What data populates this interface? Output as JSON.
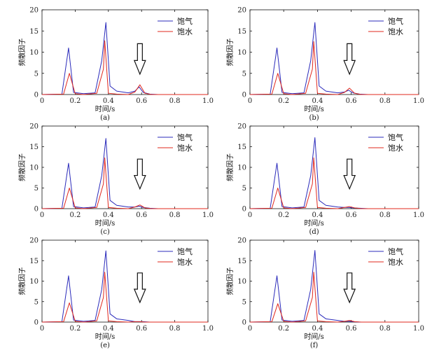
{
  "colors": {
    "saturated_gas": "#2b2bbb",
    "saturated_water": "#e0281e",
    "axis": "#111111",
    "arrow": "#111111"
  },
  "chart_data": [
    {
      "type": "line",
      "panel_label": "(a)",
      "xlabel": "时间/s",
      "ylabel": "频散因子",
      "xlim": [
        0,
        1.0
      ],
      "ylim": [
        0,
        20
      ],
      "xticks": [
        "0",
        "0.2",
        "0.4",
        "0.6",
        "0.8",
        "1.0"
      ],
      "yticks": [
        "0",
        "5",
        "10",
        "15",
        "20"
      ],
      "legend_position": "top-right",
      "peaks": {
        "saturated_gas": [
          11,
          17,
          1.8
        ],
        "saturated_water": [
          5,
          12.7,
          2.3
        ]
      },
      "series": [
        {
          "name": "饱气",
          "x": [
            0,
            0.12,
            0.16,
            0.19,
            0.25,
            0.32,
            0.36,
            0.385,
            0.41,
            0.45,
            0.52,
            0.56,
            0.585,
            0.61,
            0.65,
            0.7,
            0.8,
            1.0
          ],
          "y": [
            0,
            0.1,
            11,
            0.5,
            0.2,
            0.4,
            8,
            17,
            2,
            0.8,
            0.4,
            0.8,
            1.8,
            0.5,
            0.1,
            0,
            0,
            0
          ]
        },
        {
          "name": "饱水",
          "x": [
            0,
            0.13,
            0.165,
            0.2,
            0.25,
            0.33,
            0.37,
            0.378,
            0.4,
            0.45,
            0.52,
            0.56,
            0.59,
            0.62,
            0.66,
            0.7,
            0.8,
            1.0
          ],
          "y": [
            0,
            0.1,
            5,
            0.2,
            0,
            0.3,
            6,
            12.7,
            0.3,
            0.1,
            0,
            0.6,
            2.3,
            0.3,
            0,
            0,
            0,
            0
          ]
        }
      ],
      "arrow_x": 0.59
    },
    {
      "type": "line",
      "panel_label": "(b)",
      "xlabel": "时间/s",
      "ylabel": "频散因子",
      "xlim": [
        0,
        1.0
      ],
      "ylim": [
        0,
        20
      ],
      "xticks": [
        "0",
        "0.2",
        "0.4",
        "0.6",
        "0.8",
        "1.0"
      ],
      "yticks": [
        "0",
        "5",
        "10",
        "15",
        "20"
      ],
      "legend_position": "top-right",
      "peaks": {
        "saturated_gas": [
          11,
          17,
          1.0
        ],
        "saturated_water": [
          5,
          12.5,
          1.5
        ]
      },
      "series": [
        {
          "name": "饱气",
          "x": [
            0,
            0.12,
            0.16,
            0.19,
            0.25,
            0.32,
            0.36,
            0.385,
            0.41,
            0.45,
            0.52,
            0.56,
            0.585,
            0.61,
            0.65,
            0.7,
            0.8,
            1.0
          ],
          "y": [
            0,
            0.1,
            11,
            0.5,
            0.2,
            0.4,
            8,
            17,
            2,
            0.8,
            0.4,
            0.6,
            1.0,
            0.4,
            0.1,
            0,
            0,
            0
          ]
        },
        {
          "name": "饱水",
          "x": [
            0,
            0.13,
            0.165,
            0.2,
            0.25,
            0.33,
            0.37,
            0.378,
            0.4,
            0.45,
            0.52,
            0.56,
            0.59,
            0.62,
            0.66,
            0.7,
            0.8,
            1.0
          ],
          "y": [
            0,
            0.1,
            5,
            0.2,
            0,
            0.3,
            6,
            12.5,
            0.3,
            0.1,
            0,
            0.5,
            1.5,
            0.3,
            0,
            0,
            0,
            0
          ]
        }
      ],
      "arrow_x": 0.59
    },
    {
      "type": "line",
      "panel_label": "(c)",
      "xlabel": "时间/s",
      "ylabel": "频散因子",
      "xlim": [
        0,
        1.0
      ],
      "ylim": [
        0,
        20
      ],
      "xticks": [
        "0",
        "0.2",
        "0.4",
        "0.6",
        "0.8",
        "1.0"
      ],
      "yticks": [
        "0",
        "5",
        "10",
        "15",
        "20"
      ],
      "legend_position": "top-right",
      "peaks": {
        "saturated_gas": [
          11,
          17,
          0.6
        ],
        "saturated_water": [
          5,
          12.3,
          0.9
        ]
      },
      "series": [
        {
          "name": "饱气",
          "x": [
            0,
            0.12,
            0.16,
            0.19,
            0.25,
            0.32,
            0.36,
            0.385,
            0.41,
            0.45,
            0.52,
            0.56,
            0.585,
            0.61,
            0.65,
            0.7,
            0.8,
            1.0
          ],
          "y": [
            0,
            0.1,
            11,
            0.5,
            0.2,
            0.4,
            8,
            17,
            2,
            0.8,
            0.4,
            0.4,
            0.6,
            0.3,
            0.1,
            0,
            0,
            0
          ]
        },
        {
          "name": "饱水",
          "x": [
            0,
            0.13,
            0.165,
            0.2,
            0.25,
            0.33,
            0.37,
            0.378,
            0.4,
            0.45,
            0.52,
            0.56,
            0.59,
            0.62,
            0.66,
            0.7,
            0.8,
            1.0
          ],
          "y": [
            0,
            0.1,
            5,
            0.2,
            0,
            0.3,
            6,
            12.3,
            0.3,
            0.1,
            0,
            0.4,
            0.9,
            0.2,
            0,
            0,
            0,
            0
          ]
        }
      ],
      "arrow_x": 0.59
    },
    {
      "type": "line",
      "panel_label": "(d)",
      "xlabel": "时间/s",
      "ylabel": "频散因子",
      "xlim": [
        0,
        1.0
      ],
      "ylim": [
        0,
        20
      ],
      "xticks": [
        "0",
        "0.2",
        "0.4",
        "0.6",
        "0.8",
        "1.0"
      ],
      "yticks": [
        "0",
        "5",
        "10",
        "15",
        "20"
      ],
      "legend_position": "top-right",
      "peaks": {
        "saturated_gas": [
          11,
          17.2,
          0.3
        ],
        "saturated_water": [
          5,
          12.3,
          0.5
        ]
      },
      "series": [
        {
          "name": "饱气",
          "x": [
            0,
            0.12,
            0.16,
            0.19,
            0.25,
            0.32,
            0.36,
            0.385,
            0.41,
            0.45,
            0.52,
            0.56,
            0.585,
            0.61,
            0.65,
            0.7,
            0.8,
            1.0
          ],
          "y": [
            0,
            0.1,
            11,
            0.5,
            0.2,
            0.4,
            8,
            17.2,
            2,
            0.8,
            0.4,
            0.3,
            0.3,
            0.2,
            0.1,
            0,
            0,
            0
          ]
        },
        {
          "name": "饱水",
          "x": [
            0,
            0.13,
            0.165,
            0.2,
            0.25,
            0.33,
            0.37,
            0.378,
            0.4,
            0.45,
            0.52,
            0.56,
            0.59,
            0.62,
            0.66,
            0.7,
            0.8,
            1.0
          ],
          "y": [
            0,
            0.1,
            5,
            0.2,
            0,
            0.3,
            6,
            12.3,
            0.3,
            0.1,
            0,
            0.3,
            0.5,
            0.2,
            0,
            0,
            0,
            0
          ]
        }
      ],
      "arrow_x": 0.59
    },
    {
      "type": "line",
      "panel_label": "(e)",
      "xlabel": "时间/s",
      "ylabel": "频散因子",
      "xlim": [
        0,
        1.0
      ],
      "ylim": [
        0,
        20
      ],
      "xticks": [
        "0",
        "0.2",
        "0.4",
        "0.6",
        "0.8",
        "1.0"
      ],
      "yticks": [
        "0",
        "5",
        "10",
        "15",
        "20"
      ],
      "legend_position": "top-right",
      "peaks": {
        "saturated_gas": [
          11.3,
          17.4,
          0.1
        ],
        "saturated_water": [
          4.7,
          12.2,
          0.1
        ]
      },
      "series": [
        {
          "name": "饱气",
          "x": [
            0,
            0.12,
            0.16,
            0.19,
            0.25,
            0.32,
            0.36,
            0.385,
            0.41,
            0.45,
            0.52,
            0.56,
            0.585,
            0.61,
            0.65,
            0.7,
            0.8,
            1.0
          ],
          "y": [
            0,
            0.1,
            11.3,
            0.5,
            0.2,
            0.4,
            8,
            17.4,
            2,
            0.8,
            0.4,
            0.1,
            0.1,
            0.1,
            0,
            0,
            0,
            0
          ]
        },
        {
          "name": "饱水",
          "x": [
            0,
            0.13,
            0.165,
            0.2,
            0.25,
            0.33,
            0.37,
            0.378,
            0.4,
            0.45,
            0.52,
            0.56,
            0.59,
            0.62,
            0.66,
            0.7,
            0.8,
            1.0
          ],
          "y": [
            0,
            0.1,
            4.7,
            0.2,
            0,
            0.3,
            6,
            12.2,
            0.3,
            0.1,
            0,
            0.1,
            0.1,
            0,
            0,
            0,
            0,
            0
          ]
        }
      ],
      "arrow_x": 0.59
    },
    {
      "type": "line",
      "panel_label": "(f)",
      "xlabel": "时间/s",
      "ylabel": "频散因子",
      "xlim": [
        0,
        1.0
      ],
      "ylim": [
        0,
        20
      ],
      "xticks": [
        "0",
        "0.2",
        "0.4",
        "0.6",
        "0.8",
        "1.0"
      ],
      "yticks": [
        "0",
        "5",
        "10",
        "15",
        "20"
      ],
      "legend_position": "top-right",
      "peaks": {
        "saturated_gas": [
          11.3,
          17.5,
          0.2
        ],
        "saturated_water": [
          4.5,
          12.2,
          0.4
        ]
      },
      "series": [
        {
          "name": "饱气",
          "x": [
            0,
            0.12,
            0.16,
            0.19,
            0.25,
            0.32,
            0.36,
            0.385,
            0.41,
            0.45,
            0.52,
            0.56,
            0.585,
            0.61,
            0.65,
            0.7,
            0.8,
            1.0
          ],
          "y": [
            0,
            0.1,
            11.3,
            0.5,
            0.2,
            0.4,
            8,
            17.5,
            2,
            0.8,
            0.4,
            0.2,
            0.2,
            0.1,
            0,
            0,
            0,
            0
          ]
        },
        {
          "name": "饱水",
          "x": [
            0,
            0.13,
            0.165,
            0.2,
            0.25,
            0.33,
            0.37,
            0.378,
            0.4,
            0.45,
            0.52,
            0.56,
            0.59,
            0.62,
            0.66,
            0.7,
            0.8,
            1.0
          ],
          "y": [
            0,
            0.1,
            4.5,
            0.2,
            0,
            0.3,
            6,
            12.2,
            0.3,
            0.1,
            0,
            0.2,
            0.4,
            0.1,
            0,
            0,
            0,
            0
          ]
        }
      ],
      "arrow_x": 0.59
    }
  ]
}
